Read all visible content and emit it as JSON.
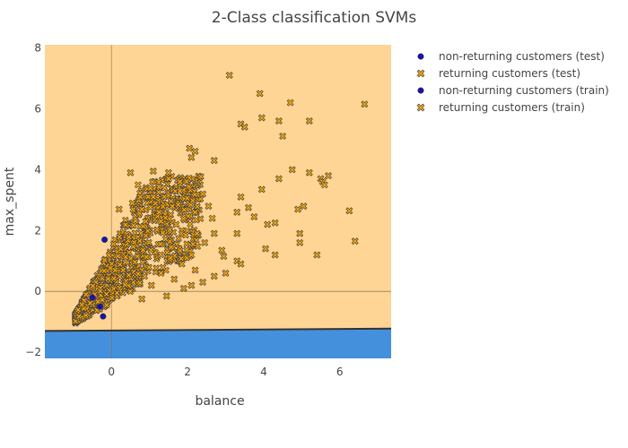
{
  "chart_data": {
    "type": "scatter",
    "title": "2-Class classification SVMs",
    "xlabel": "balance",
    "ylabel": "max_spent",
    "xlim": [
      -1.75,
      7.35
    ],
    "ylim": [
      -2.2,
      8.1
    ],
    "x_ticks": [
      0,
      2,
      4,
      6
    ],
    "y_ticks": [
      -2,
      0,
      2,
      4,
      6,
      8
    ],
    "tick_labels_x": [
      "0",
      "2",
      "4",
      "6"
    ],
    "tick_labels_y": [
      "−2",
      "0",
      "2",
      "4",
      "6",
      "8"
    ],
    "grid": false,
    "legend_position": "top-right",
    "background_regions": [
      {
        "label": "returning region",
        "color": "#fed595"
      },
      {
        "label": "non-returning region",
        "color": "#4590dc"
      }
    ],
    "decision_boundary": {
      "x": [
        -1.75,
        7.35
      ],
      "y": [
        -1.3,
        -1.22
      ],
      "color": "#333333"
    },
    "series": [
      {
        "name": "non-returning customers (test)",
        "marker": "circle",
        "color": "#1b12a6",
        "points": [
          [
            -0.22,
            -0.82
          ],
          [
            -0.18,
            1.7
          ]
        ]
      },
      {
        "name": "returning customers (test)",
        "marker": "x",
        "color": "#ffa500",
        "points": [
          [
            3.1,
            7.1
          ],
          [
            3.9,
            6.5
          ],
          [
            4.7,
            6.2
          ],
          [
            6.65,
            6.15
          ],
          [
            3.95,
            5.7
          ],
          [
            4.4,
            5.6
          ],
          [
            5.2,
            5.6
          ],
          [
            3.4,
            5.5
          ],
          [
            3.5,
            5.4
          ],
          [
            4.5,
            5.1
          ],
          [
            2.05,
            4.7
          ],
          [
            2.2,
            4.6
          ],
          [
            2.1,
            4.4
          ],
          [
            2.7,
            4.3
          ],
          [
            4.75,
            4.0
          ],
          [
            5.7,
            3.8
          ],
          [
            5.5,
            3.7
          ],
          [
            4.4,
            3.7
          ],
          [
            5.2,
            3.9
          ],
          [
            5.55,
            3.6
          ],
          [
            5.6,
            3.5
          ],
          [
            3.95,
            3.35
          ],
          [
            3.4,
            3.1
          ],
          [
            5.05,
            2.8
          ],
          [
            4.9,
            2.7
          ],
          [
            6.25,
            2.65
          ],
          [
            3.75,
            2.45
          ],
          [
            3.3,
            2.6
          ],
          [
            3.6,
            2.75
          ],
          [
            4.1,
            2.2
          ],
          [
            4.3,
            2.25
          ],
          [
            3.3,
            1.9
          ],
          [
            4.95,
            1.9
          ],
          [
            4.95,
            1.6
          ],
          [
            6.4,
            1.65
          ],
          [
            5.4,
            1.2
          ],
          [
            4.05,
            1.4
          ],
          [
            4.3,
            1.2
          ],
          [
            3.3,
            1.0
          ],
          [
            2.95,
            1.15
          ],
          [
            3.4,
            0.9
          ],
          [
            3.0,
            0.6
          ],
          [
            2.7,
            0.5
          ],
          [
            2.4,
            0.3
          ],
          [
            2.1,
            0.2
          ],
          [
            1.3,
            2.3
          ],
          [
            1.6,
            2.8
          ],
          [
            1.8,
            3.3
          ],
          [
            0.8,
            2.7
          ],
          [
            1.1,
            3.1
          ]
        ]
      },
      {
        "name": "non-returning customers (train)",
        "marker": "circle",
        "color": "#1b12a6",
        "points": [
          [
            -0.3,
            -0.5
          ],
          [
            -0.5,
            -0.2
          ]
        ]
      },
      {
        "name": "returning customers (train)",
        "marker": "x",
        "color": "#ffa500",
        "points": [
          [
            0.5,
            3.9
          ],
          [
            0.7,
            3.5
          ],
          [
            1.1,
            3.95
          ],
          [
            1.5,
            3.9
          ],
          [
            1.8,
            3.6
          ],
          [
            1.4,
            3.4
          ],
          [
            0.2,
            2.7
          ],
          [
            0.55,
            2.9
          ],
          [
            0.9,
            2.3
          ],
          [
            1.25,
            2.6
          ],
          [
            1.7,
            2.2
          ],
          [
            2.2,
            2.6
          ],
          [
            2.55,
            2.8
          ],
          [
            2.4,
            3.2
          ],
          [
            2.65,
            2.4
          ],
          [
            1.95,
            1.85
          ],
          [
            2.25,
            1.9
          ],
          [
            2.45,
            1.6
          ],
          [
            2.9,
            1.35
          ],
          [
            2.7,
            1.9
          ],
          [
            2.1,
            1.2
          ],
          [
            1.85,
            0.9
          ],
          [
            1.55,
            1.1
          ],
          [
            1.3,
            0.6
          ],
          [
            1.65,
            0.4
          ],
          [
            1.05,
            0.2
          ],
          [
            1.45,
            -0.15
          ],
          [
            0.8,
            -0.25
          ],
          [
            1.9,
            0.1
          ],
          [
            2.2,
            0.7
          ]
        ]
      }
    ]
  }
}
